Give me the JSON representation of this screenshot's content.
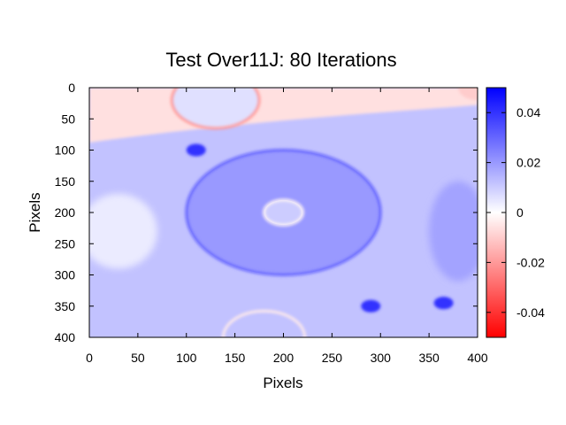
{
  "chart_data": {
    "type": "heatmap",
    "title": "Test Over11J: 80 Iterations",
    "xlabel": "Pixels",
    "ylabel": "Pixels",
    "xlim": [
      0,
      400
    ],
    "ylim": [
      0,
      400
    ],
    "y_axis_inverted": true,
    "x_ticks": [
      "0",
      "50",
      "100",
      "150",
      "200",
      "250",
      "300",
      "350",
      "400"
    ],
    "y_ticks": [
      "0",
      "50",
      "100",
      "150",
      "200",
      "250",
      "300",
      "350",
      "400"
    ],
    "colorbar": {
      "range": [
        -0.05,
        0.05
      ],
      "colormap": [
        "#ff0000",
        "#ffffff",
        "#0000ff"
      ],
      "ticks": [
        "0.04",
        "0.02",
        "0",
        "-0.02",
        "-0.04"
      ]
    },
    "background_field": {
      "upper_band_value": -0.006,
      "lower_region_value": 0.012,
      "note_boundary": "diagonal transition from about y=85 at x=0 to y=30 at x=400"
    },
    "features": [
      {
        "shape": "circle",
        "cx": 130,
        "cy": 20,
        "r": 45,
        "interior_value": 0.006,
        "rim_value": -0.02
      },
      {
        "shape": "ellipse",
        "cx": 200,
        "cy": 200,
        "rx": 100,
        "ry": 100,
        "interior_value": 0.02,
        "rim_value": 0.03
      },
      {
        "shape": "circle",
        "cx": 200,
        "cy": 200,
        "r": 20,
        "interior_value": 0.01,
        "rim_value": -0.002
      },
      {
        "shape": "spot",
        "cx": 110,
        "cy": 100,
        "r": 10,
        "value": 0.04
      },
      {
        "shape": "spot",
        "cx": 290,
        "cy": 350,
        "r": 10,
        "value": 0.04
      },
      {
        "shape": "spot",
        "cx": 365,
        "cy": 345,
        "r": 10,
        "value": 0.04
      },
      {
        "shape": "circle",
        "cx": 180,
        "cy": 400,
        "r": 42,
        "interior_value": 0.012,
        "rim_value": -0.004
      },
      {
        "shape": "corner",
        "cx": 400,
        "cy": 0,
        "r": 20,
        "value": -0.01
      }
    ]
  }
}
